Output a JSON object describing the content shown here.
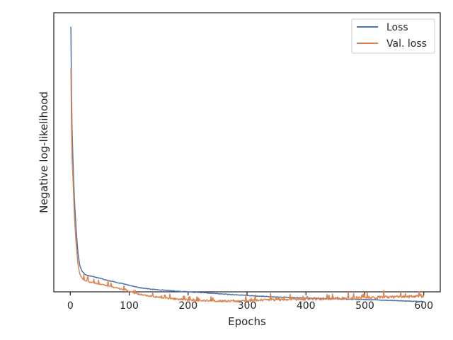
{
  "chart_data": {
    "type": "line",
    "title": "",
    "xlabel": "Epochs",
    "ylabel": "Negative log-likelihood",
    "xlim": [
      -28,
      628
    ],
    "ylim": [
      0,
      100
    ],
    "xticks": [
      0,
      100,
      200,
      300,
      400,
      500,
      600
    ],
    "yticks_labeled": false,
    "grid": false,
    "legend": {
      "position": "upper right"
    },
    "series": [
      {
        "name": "Loss",
        "color": "#4c72b0",
        "x": [
          1,
          2,
          3,
          5,
          7,
          10,
          13,
          16,
          20,
          25,
          30,
          40,
          50,
          60,
          70,
          80,
          90,
          100,
          110,
          120,
          140,
          160,
          180,
          200,
          220,
          240,
          260,
          280,
          300,
          320,
          340,
          360,
          380,
          400,
          420,
          440,
          460,
          480,
          500,
          520,
          540,
          560,
          580,
          600
        ],
        "y": [
          95,
          72,
          58,
          44,
          33,
          22,
          14,
          9.5,
          7.4,
          6.2,
          5.9,
          5.4,
          4.9,
          4.3,
          3.8,
          3.3,
          2.9,
          2.3,
          1.9,
          1.4,
          0.9,
          0.6,
          0.25,
          0.0,
          -0.25,
          -0.5,
          -0.8,
          -1.05,
          -1.3,
          -1.55,
          -1.75,
          -1.95,
          -2.1,
          -2.25,
          -2.35,
          -2.45,
          -2.55,
          -2.65,
          -2.75,
          -2.9,
          -3.05,
          -3.2,
          -3.4,
          -3.5
        ]
      },
      {
        "name": "Val. loss",
        "color": "#dd8452",
        "x": [
          1,
          2,
          3,
          5,
          7,
          10,
          13,
          16,
          20,
          25,
          30,
          40,
          50,
          60,
          70,
          80,
          90,
          100,
          110,
          120,
          140,
          160,
          180,
          200,
          220,
          240,
          260,
          280,
          300,
          320,
          340,
          360,
          380,
          400,
          420,
          440,
          460,
          480,
          500,
          520,
          540,
          560,
          580,
          600
        ],
        "y": [
          80,
          60,
          48,
          38,
          27,
          17,
          10,
          6.5,
          4.8,
          4.0,
          3.6,
          3.2,
          2.8,
          2.3,
          1.8,
          1.3,
          0.8,
          0.2,
          -0.5,
          -1.0,
          -1.7,
          -2.2,
          -2.6,
          -2.9,
          -3.1,
          -3.2,
          -3.3,
          -3.3,
          -3.2,
          -3.0,
          -2.9,
          -2.8,
          -2.7,
          -2.6,
          -2.5,
          -2.4,
          -2.3,
          -2.2,
          -2.1,
          -2.0,
          -1.9,
          -1.8,
          -1.7,
          -1.6
        ]
      }
    ]
  }
}
